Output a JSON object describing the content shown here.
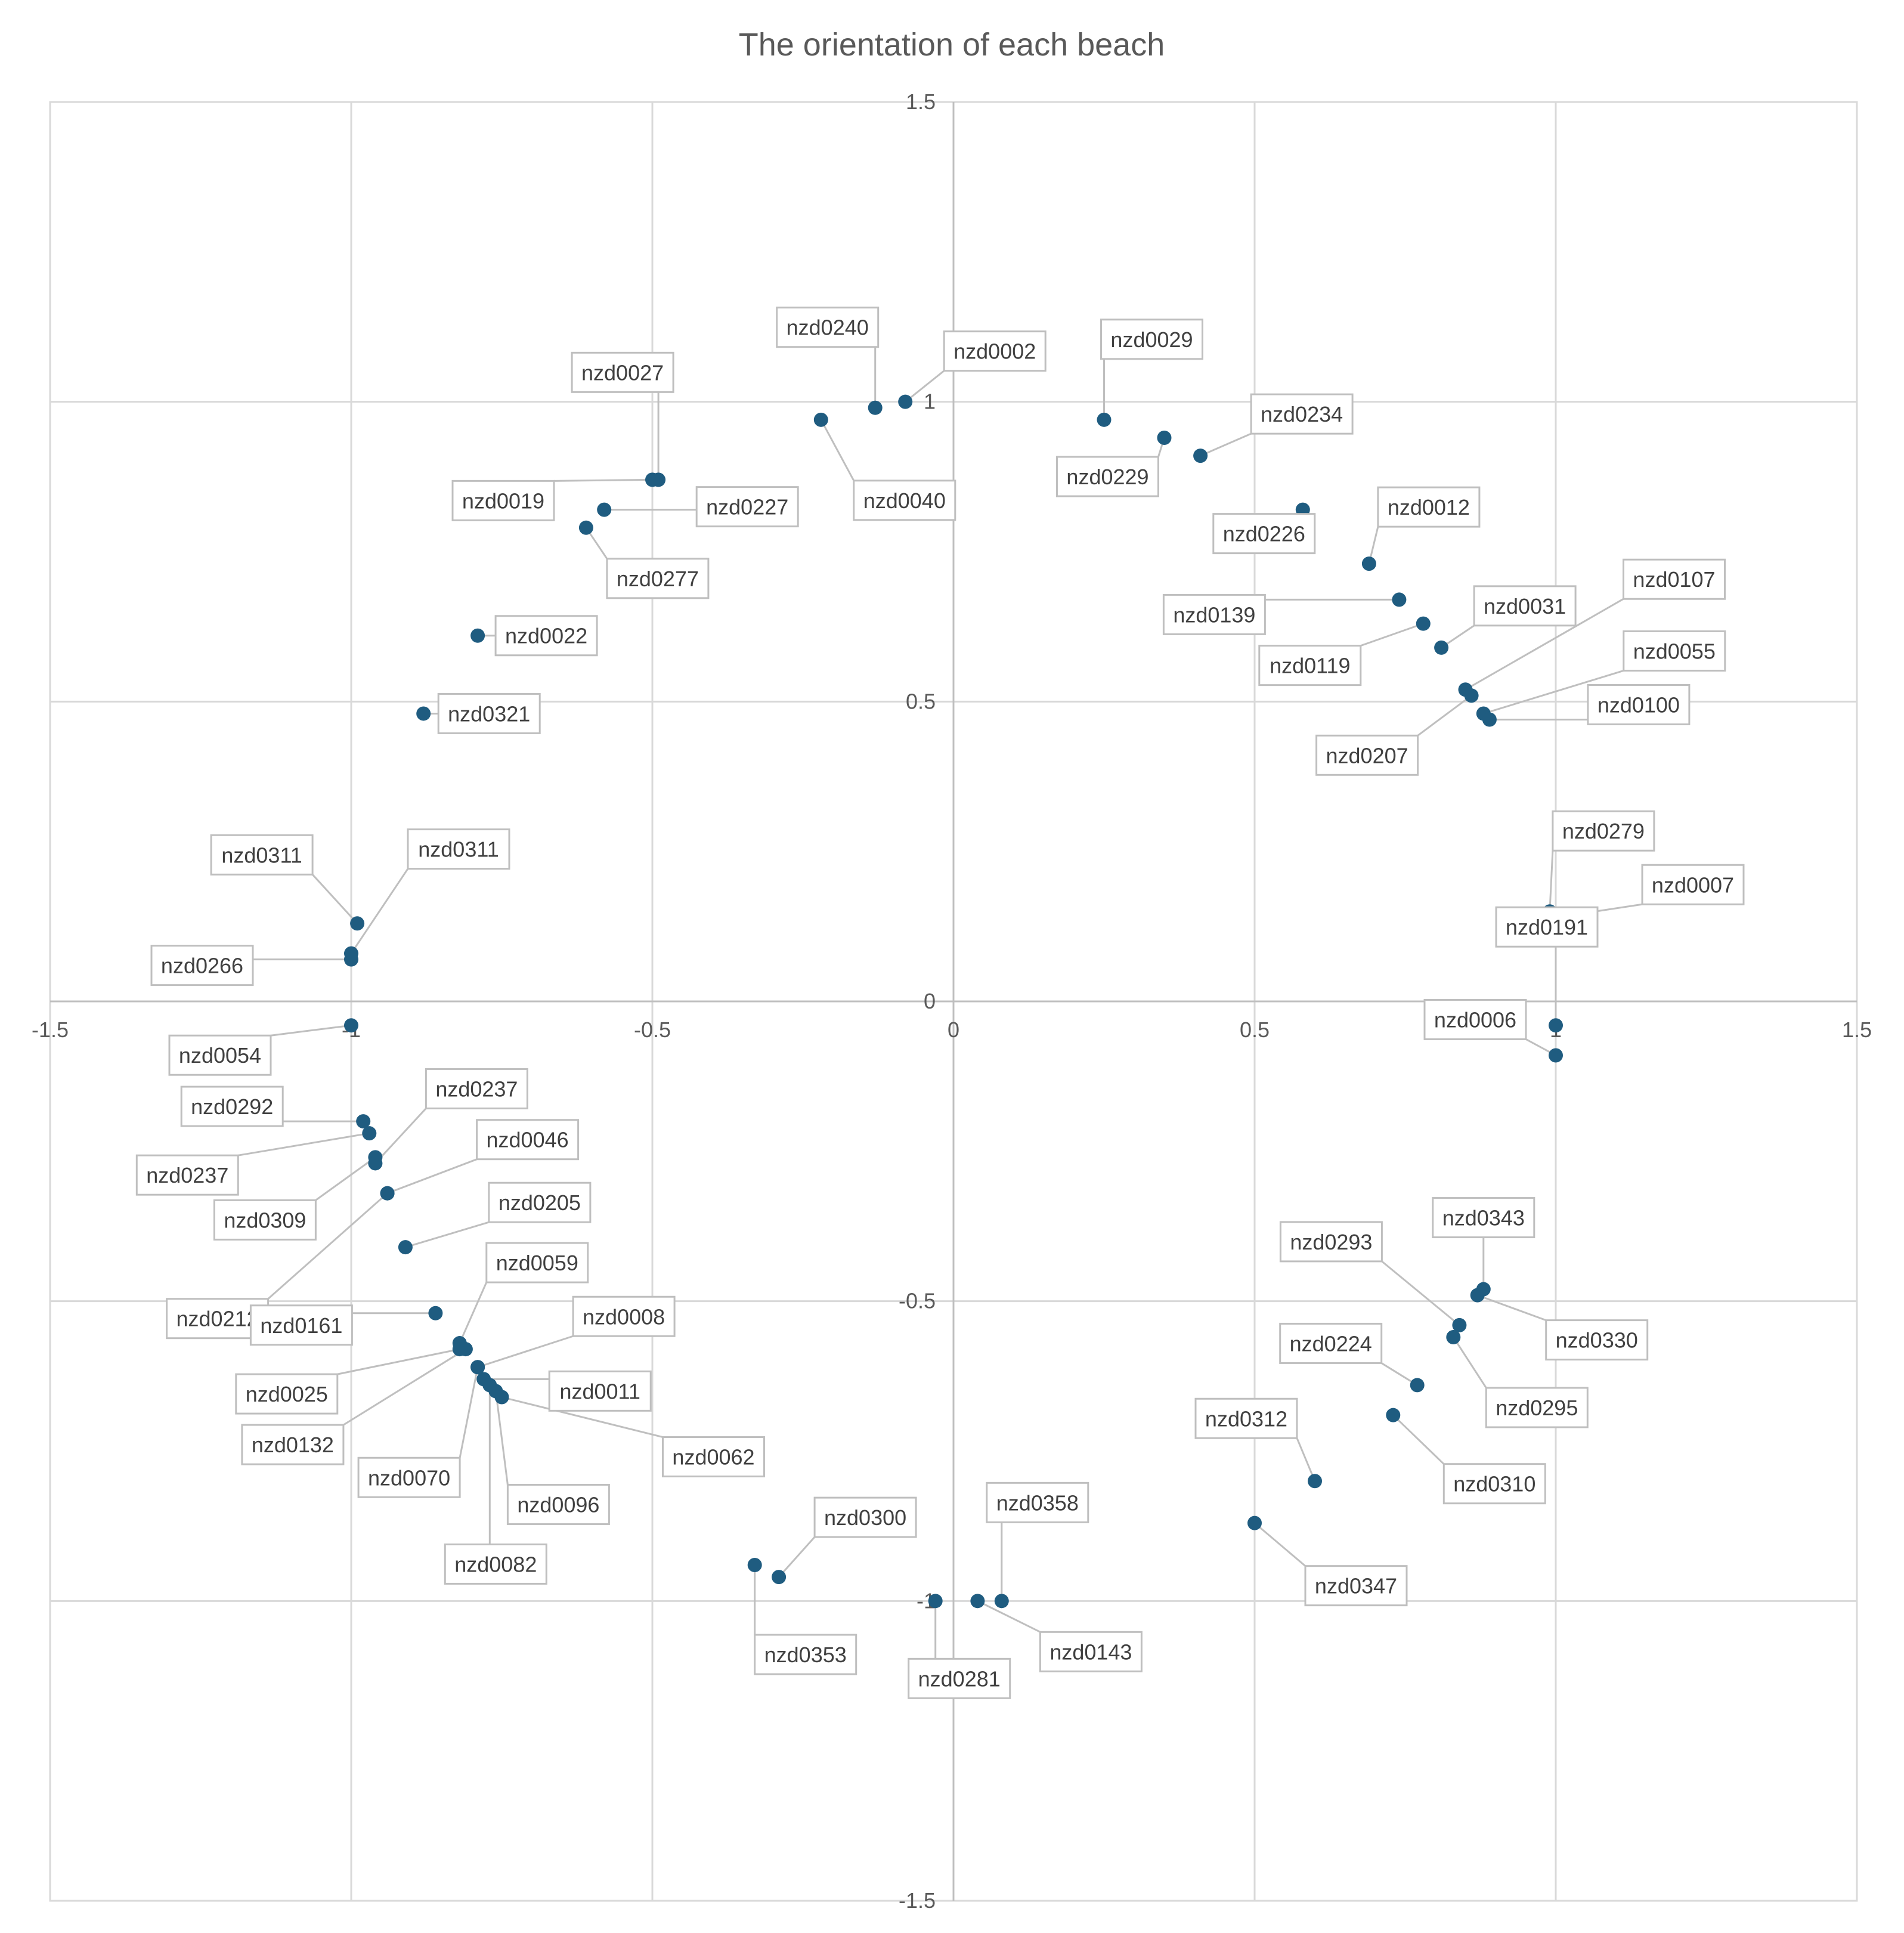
{
  "chart_data": {
    "type": "scatter",
    "title": "The orientation of each beach",
    "xlabel": "",
    "ylabel": "",
    "xlim": [
      -1.5,
      1.5
    ],
    "ylim": [
      -1.5,
      1.5
    ],
    "x_ticks": [
      "-1.5",
      "-1",
      "-0.5",
      "0",
      "0.5",
      "1",
      "1.5"
    ],
    "y_ticks": [
      "1.5",
      "1",
      "0.5",
      "0",
      "-0.5",
      "-1",
      "-1.5"
    ],
    "grid": true,
    "marker_color": "#1f5c80",
    "points": [
      {
        "label": "nzd0240",
        "x": -0.13,
        "y": 0.99
      },
      {
        "label": "nzd0002",
        "x": -0.08,
        "y": 1.0
      },
      {
        "label": "nzd0040",
        "x": -0.22,
        "y": 0.97
      },
      {
        "label": "nzd0027",
        "x": -0.49,
        "y": 0.87
      },
      {
        "label": "nzd0019",
        "x": -0.5,
        "y": 0.87
      },
      {
        "label": "nzd0227",
        "x": -0.58,
        "y": 0.82
      },
      {
        "label": "nzd0277",
        "x": -0.61,
        "y": 0.79
      },
      {
        "label": "nzd0022",
        "x": -0.79,
        "y": 0.61
      },
      {
        "label": "nzd0321",
        "x": -0.88,
        "y": 0.48
      },
      {
        "label": "nzd0029",
        "x": 0.25,
        "y": 0.97
      },
      {
        "label": "nzd0229",
        "x": 0.35,
        "y": 0.94
      },
      {
        "label": "nzd0234",
        "x": 0.41,
        "y": 0.91
      },
      {
        "label": "nzd0226",
        "x": 0.58,
        "y": 0.82
      },
      {
        "label": "nzd0012",
        "x": 0.69,
        "y": 0.73
      },
      {
        "label": "nzd0139",
        "x": 0.74,
        "y": 0.67
      },
      {
        "label": "nzd0119",
        "x": 0.78,
        "y": 0.63
      },
      {
        "label": "nzd0031",
        "x": 0.81,
        "y": 0.59
      },
      {
        "label": "nzd0107",
        "x": 0.85,
        "y": 0.52
      },
      {
        "label": "nzd0207",
        "x": 0.86,
        "y": 0.51
      },
      {
        "label": "nzd0055",
        "x": 0.88,
        "y": 0.48
      },
      {
        "label": "nzd0100",
        "x": 0.89,
        "y": 0.47
      },
      {
        "label": "nzd0279",
        "x": 0.99,
        "y": 0.15
      },
      {
        "label": "nzd0007",
        "x": 1.0,
        "y": 0.14
      },
      {
        "label": "nzd0191",
        "x": 1.0,
        "y": -0.04
      },
      {
        "label": "nzd0006",
        "x": 1.0,
        "y": -0.09
      },
      {
        "label": "nzd0311",
        "x": -0.99,
        "y": 0.13
      },
      {
        "label": "nzd0311",
        "x": -1.0,
        "y": 0.08
      },
      {
        "label": "nzd0266",
        "x": -1.0,
        "y": 0.07
      },
      {
        "label": "nzd0054",
        "x": -1.0,
        "y": -0.04
      },
      {
        "label": "nzd0292",
        "x": -0.98,
        "y": -0.2
      },
      {
        "label": "nzd0237",
        "x": -0.97,
        "y": -0.22
      },
      {
        "label": "nzd0309",
        "x": -0.96,
        "y": -0.26
      },
      {
        "label": "nzd0237",
        "x": -0.96,
        "y": -0.27
      },
      {
        "label": "nzd0046",
        "x": -0.94,
        "y": -0.32
      },
      {
        "label": "nzd0212",
        "x": -0.94,
        "y": -0.32
      },
      {
        "label": "nzd0205",
        "x": -0.91,
        "y": -0.41
      },
      {
        "label": "nzd0161",
        "x": -0.86,
        "y": -0.52
      },
      {
        "label": "nzd0059",
        "x": -0.82,
        "y": -0.57
      },
      {
        "label": "nzd0025",
        "x": -0.82,
        "y": -0.58
      },
      {
        "label": "nzd0132",
        "x": -0.81,
        "y": -0.58
      },
      {
        "label": "nzd0008",
        "x": -0.79,
        "y": -0.61
      },
      {
        "label": "nzd0070",
        "x": -0.79,
        "y": -0.61
      },
      {
        "label": "nzd0011",
        "x": -0.78,
        "y": -0.63
      },
      {
        "label": "nzd0082",
        "x": -0.77,
        "y": -0.64
      },
      {
        "label": "nzd0096",
        "x": -0.76,
        "y": -0.65
      },
      {
        "label": "nzd0062",
        "x": -0.75,
        "y": -0.66
      },
      {
        "label": "nzd0300",
        "x": -0.29,
        "y": -0.96
      },
      {
        "label": "nzd0353",
        "x": -0.33,
        "y": -0.94
      },
      {
        "label": "nzd0281",
        "x": -0.03,
        "y": -1.0
      },
      {
        "label": "nzd0143",
        "x": 0.04,
        "y": -1.0
      },
      {
        "label": "nzd0358",
        "x": 0.08,
        "y": -1.0
      },
      {
        "label": "nzd0347",
        "x": 0.5,
        "y": -0.87
      },
      {
        "label": "nzd0312",
        "x": 0.6,
        "y": -0.8
      },
      {
        "label": "nzd0310",
        "x": 0.73,
        "y": -0.69
      },
      {
        "label": "nzd0224",
        "x": 0.77,
        "y": -0.64
      },
      {
        "label": "nzd0295",
        "x": 0.83,
        "y": -0.56
      },
      {
        "label": "nzd0293",
        "x": 0.84,
        "y": -0.54
      },
      {
        "label": "nzd0330",
        "x": 0.87,
        "y": -0.49
      },
      {
        "label": "nzd0343",
        "x": 0.88,
        "y": -0.48
      }
    ]
  }
}
